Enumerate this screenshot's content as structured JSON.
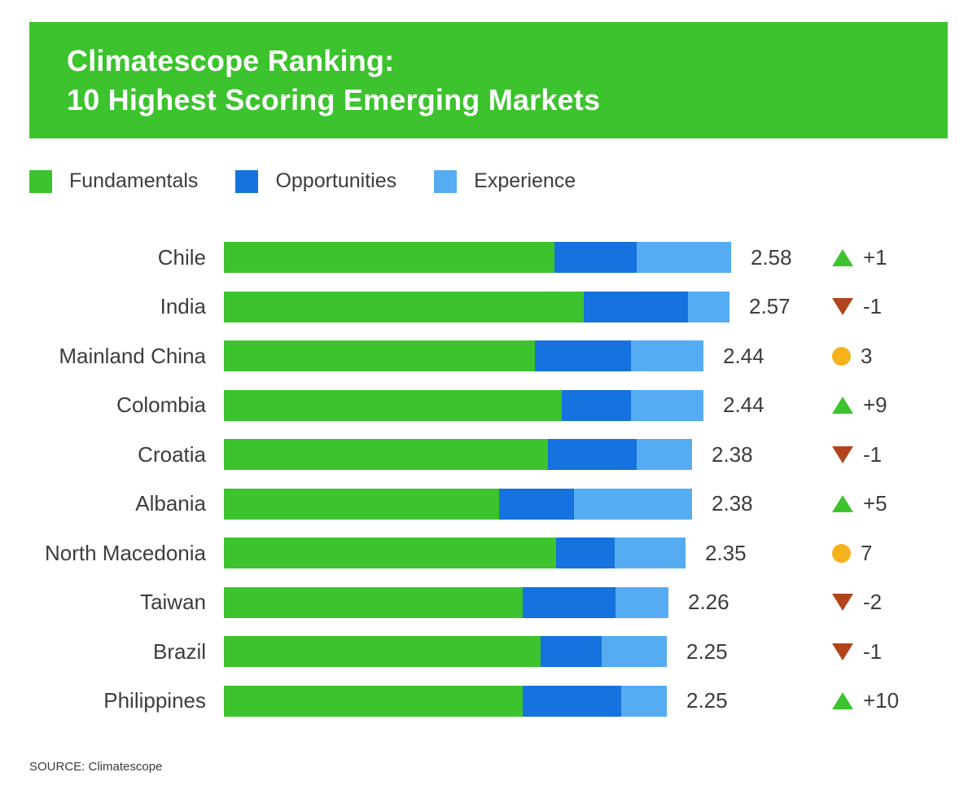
{
  "header": {
    "title_line1": "Climatescope Ranking:",
    "title_line2": "10 Highest Scoring Emerging Markets"
  },
  "legend": {
    "items": [
      {
        "label": "Fundamentals",
        "color_key": "fundamentals"
      },
      {
        "label": "Opportunities",
        "color_key": "opportunities"
      },
      {
        "label": "Experience",
        "color_key": "experience"
      }
    ]
  },
  "colors": {
    "brand_green": "#3CC32E",
    "fundamentals": "#3CC32E",
    "opportunities": "#1572DE",
    "experience": "#56ACF2",
    "rank_up": "#3CC32E",
    "rank_down": "#B2441D",
    "rank_steady": "#F6B21B",
    "text": "#3D3D3D"
  },
  "chart_data": {
    "type": "bar",
    "orientation": "horizontal",
    "stacked": true,
    "title": "Climatescope Ranking: 10 Highest Scoring Emerging Markets",
    "series_names": [
      "Fundamentals",
      "Opportunities",
      "Experience"
    ],
    "x_max": 2.58,
    "legend_position": "top",
    "grid": false,
    "rows": [
      {
        "country": "Chile",
        "score": 2.58,
        "score_label": "2.58",
        "segments": {
          "fundamentals": 1.68,
          "opportunities": 0.42,
          "experience": 0.48
        },
        "change": {
          "direction": "up",
          "label": "+1"
        }
      },
      {
        "country": "India",
        "score": 2.57,
        "score_label": "2.57",
        "segments": {
          "fundamentals": 1.83,
          "opportunities": 0.53,
          "experience": 0.21
        },
        "change": {
          "direction": "down",
          "label": "-1"
        }
      },
      {
        "country": "Mainland China",
        "score": 2.44,
        "score_label": "2.44",
        "segments": {
          "fundamentals": 1.58,
          "opportunities": 0.49,
          "experience": 0.37
        },
        "change": {
          "direction": "steady",
          "label": "3"
        }
      },
      {
        "country": "Colombia",
        "score": 2.44,
        "score_label": "2.44",
        "segments": {
          "fundamentals": 1.72,
          "opportunities": 0.35,
          "experience": 0.37
        },
        "change": {
          "direction": "up",
          "label": "+9"
        }
      },
      {
        "country": "Croatia",
        "score": 2.38,
        "score_label": "2.38",
        "segments": {
          "fundamentals": 1.65,
          "opportunities": 0.45,
          "experience": 0.28
        },
        "change": {
          "direction": "down",
          "label": "-1"
        }
      },
      {
        "country": "Albania",
        "score": 2.38,
        "score_label": "2.38",
        "segments": {
          "fundamentals": 1.4,
          "opportunities": 0.38,
          "experience": 0.6
        },
        "change": {
          "direction": "up",
          "label": "+5"
        }
      },
      {
        "country": "North Macedonia",
        "score": 2.35,
        "score_label": "2.35",
        "segments": {
          "fundamentals": 1.69,
          "opportunities": 0.3,
          "experience": 0.36
        },
        "change": {
          "direction": "steady",
          "label": "7"
        }
      },
      {
        "country": "Taiwan",
        "score": 2.26,
        "score_label": "2.26",
        "segments": {
          "fundamentals": 1.52,
          "opportunities": 0.47,
          "experience": 0.27
        },
        "change": {
          "direction": "down",
          "label": "-2"
        }
      },
      {
        "country": "Brazil",
        "score": 2.25,
        "score_label": "2.25",
        "segments": {
          "fundamentals": 1.61,
          "opportunities": 0.31,
          "experience": 0.33
        },
        "change": {
          "direction": "down",
          "label": "-1"
        }
      },
      {
        "country": "Philippines",
        "score": 2.25,
        "score_label": "2.25",
        "segments": {
          "fundamentals": 1.52,
          "opportunities": 0.5,
          "experience": 0.23
        },
        "change": {
          "direction": "up",
          "label": "+10"
        }
      }
    ]
  },
  "source": "SOURCE: Climatescope"
}
